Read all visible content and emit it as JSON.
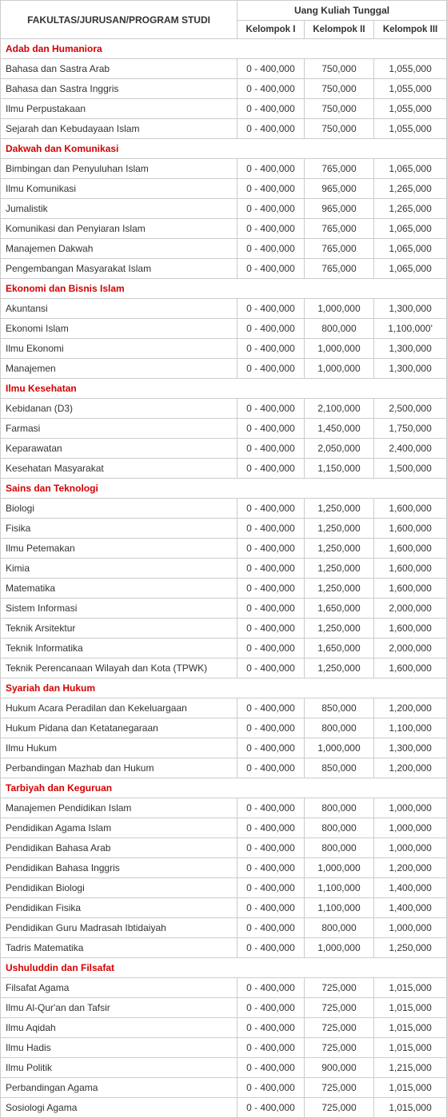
{
  "header": {
    "main": "FAKULTAS/JURUSAN/PROGRAM STUDI",
    "group": "Uang Kuliah Tunggal",
    "sub1": "Kelompok I",
    "sub2": "Kelompok II",
    "sub3": "Kelompok III"
  },
  "colors": {
    "faculty_text": "#d40000",
    "border": "#cccccc",
    "text": "#333333"
  },
  "sections": [
    {
      "faculty": "Adab dan Humaniora",
      "rows": [
        {
          "name": "Bahasa dan Sastra Arab",
          "k1": "0 - 400,000",
          "k2": "750,000",
          "k3": "1,055,000"
        },
        {
          "name": "Bahasa dan Sastra Inggris",
          "k1": "0 - 400,000",
          "k2": "750,000",
          "k3": "1,055,000"
        },
        {
          "name": "Ilmu Perpustakaan",
          "k1": "0 - 400,000",
          "k2": "750,000",
          "k3": "1,055,000"
        },
        {
          "name": "Sejarah dan Kebudayaan Islam",
          "k1": "0 - 400,000",
          "k2": "750,000",
          "k3": "1,055,000"
        }
      ]
    },
    {
      "faculty": "Dakwah dan Komunikasi",
      "rows": [
        {
          "name": "Bimbingan dan Penyuluhan Islam",
          "k1": "0 - 400,000",
          "k2": "765,000",
          "k3": "1,065,000"
        },
        {
          "name": "Ilmu Komunikasi",
          "k1": "0 - 400,000",
          "k2": "965,000",
          "k3": "1,265,000"
        },
        {
          "name": "Jumalistik",
          "k1": "0 - 400,000",
          "k2": "965,000",
          "k3": "1,265,000"
        },
        {
          "name": "Komunikasi dan Penyiaran Islam",
          "k1": "0 - 400,000",
          "k2": "765,000",
          "k3": "1,065,000"
        },
        {
          "name": "Manajemen Dakwah",
          "k1": "0 - 400,000",
          "k2": "765,000",
          "k3": "1,065,000"
        },
        {
          "name": "Pengembangan Masyarakat Islam",
          "k1": "0 - 400,000",
          "k2": "765,000",
          "k3": "1,065,000"
        }
      ]
    },
    {
      "faculty": "Ekonomi dan Bisnis Islam",
      "rows": [
        {
          "name": "Akuntansi",
          "k1": "0 - 400,000",
          "k2": "1,000,000",
          "k3": "1,300,000"
        },
        {
          "name": "Ekonomi Islam",
          "k1": "0 - 400,000",
          "k2": "800,000",
          "k3": "1,100,000'"
        },
        {
          "name": "Ilmu Ekonomi",
          "k1": "0 - 400,000",
          "k2": "1,000,000",
          "k3": "1,300,000"
        },
        {
          "name": "Manajemen",
          "k1": "0 - 400,000",
          "k2": "1,000,000",
          "k3": "1,300,000"
        }
      ]
    },
    {
      "faculty": "Ilmu Kesehatan",
      "rows": [
        {
          "name": "Kebidanan (D3)",
          "k1": "0 - 400,000",
          "k2": "2,100,000",
          "k3": "2,500,000"
        },
        {
          "name": "Farmasi",
          "k1": "0 - 400,000",
          "k2": "1,450,000",
          "k3": "1,750,000"
        },
        {
          "name": "Keparawatan",
          "k1": "0 - 400,000",
          "k2": "2,050,000",
          "k3": "2,400,000"
        },
        {
          "name": "Kesehatan Masyarakat",
          "k1": "0 - 400,000",
          "k2": "1,150,000",
          "k3": "1,500,000"
        }
      ]
    },
    {
      "faculty": "Sains dan Teknologi",
      "rows": [
        {
          "name": "Biologi",
          "k1": "0 - 400,000",
          "k2": "1,250,000",
          "k3": "1,600,000"
        },
        {
          "name": "Fisika",
          "k1": "0 - 400,000",
          "k2": "1,250,000",
          "k3": "1,600,000"
        },
        {
          "name": "Ilmu Petemakan",
          "k1": "0 - 400,000",
          "k2": "1,250,000",
          "k3": "1,600,000"
        },
        {
          "name": "Kimia",
          "k1": "0 - 400,000",
          "k2": "1,250,000",
          "k3": "1,600,000"
        },
        {
          "name": "Matematika",
          "k1": "0 - 400,000",
          "k2": "1,250,000",
          "k3": "1,600,000"
        },
        {
          "name": "Sistem Informasi",
          "k1": "0 - 400,000",
          "k2": "1,650,000",
          "k3": "2,000,000"
        },
        {
          "name": "Teknik Arsitektur",
          "k1": "0 - 400,000",
          "k2": "1,250,000",
          "k3": "1,600,000"
        },
        {
          "name": "Teknik Informatika",
          "k1": "0 - 400,000",
          "k2": "1,650,000",
          "k3": "2,000,000"
        },
        {
          "name": "Teknik Perencanaan Wilayah dan Kota (TPWK)",
          "k1": "0 - 400,000",
          "k2": "1,250,000",
          "k3": "1,600,000"
        }
      ]
    },
    {
      "faculty": "Syariah dan Hukum",
      "rows": [
        {
          "name": "Hukum Acara Peradilan dan Kekeluargaan",
          "k1": "0 - 400,000",
          "k2": "850,000",
          "k3": "1,200,000"
        },
        {
          "name": "Hukum Pidana dan Ketatanegaraan",
          "k1": "0 - 400,000",
          "k2": "800,000",
          "k3": "1,100,000"
        },
        {
          "name": "Ilmu Hukum",
          "k1": "0 - 400,000",
          "k2": "1,000,000",
          "k3": "1,300,000"
        },
        {
          "name": "Perbandingan Mazhab dan Hukum",
          "k1": "0 - 400,000",
          "k2": "850,000",
          "k3": "1,200,000"
        }
      ]
    },
    {
      "faculty": "Tarbiyah dan Keguruan",
      "rows": [
        {
          "name": "Manajemen Pendidikan Islam",
          "k1": "0 - 400,000",
          "k2": "800,000",
          "k3": "1,000,000"
        },
        {
          "name": "Pendidikan Agama Islam",
          "k1": "0 - 400,000",
          "k2": "800,000",
          "k3": "1,000,000"
        },
        {
          "name": "Pendidikan Bahasa Arab",
          "k1": "0 - 400,000",
          "k2": "800,000",
          "k3": "1,000,000"
        },
        {
          "name": "Pendidikan Bahasa Inggris",
          "k1": "0 - 400,000",
          "k2": "1,000,000",
          "k3": "1,200,000"
        },
        {
          "name": "Pendidikan Biologi",
          "k1": "0 - 400,000",
          "k2": "1,100,000",
          "k3": "1,400,000"
        },
        {
          "name": "Pendidikan Fisika",
          "k1": "0 - 400,000",
          "k2": "1,100,000",
          "k3": "1,400,000"
        },
        {
          "name": "Pendidikan Guru Madrasah Ibtidaiyah",
          "k1": "0 - 400,000",
          "k2": "800,000",
          "k3": "1,000,000"
        },
        {
          "name": "Tadris Matematika",
          "k1": "0 - 400,000",
          "k2": "1,000,000",
          "k3": "1,250,000"
        }
      ]
    },
    {
      "faculty": "Ushuluddin dan Filsafat",
      "rows": [
        {
          "name": "Filsafat Agama",
          "k1": "0 - 400,000",
          "k2": "725,000",
          "k3": "1,015,000"
        },
        {
          "name": "Ilmu Al-Qur'an dan Tafsir",
          "k1": "0 - 400,000",
          "k2": "725,000",
          "k3": "1,015,000"
        },
        {
          "name": "Ilmu Aqidah",
          "k1": "0 - 400,000",
          "k2": "725,000",
          "k3": "1,015,000"
        },
        {
          "name": "Ilmu Hadis",
          "k1": "0 - 400,000",
          "k2": "725,000",
          "k3": "1,015,000"
        },
        {
          "name": "Ilmu Politik",
          "k1": "0 - 400,000",
          "k2": "900,000",
          "k3": "1,215,000"
        },
        {
          "name": "Perbandingan Agama",
          "k1": "0 - 400,000",
          "k2": "725,000",
          "k3": "1,015,000"
        },
        {
          "name": "Sosiologi Agama",
          "k1": "0 - 400,000",
          "k2": "725,000",
          "k3": "1,015,000"
        }
      ]
    }
  ]
}
